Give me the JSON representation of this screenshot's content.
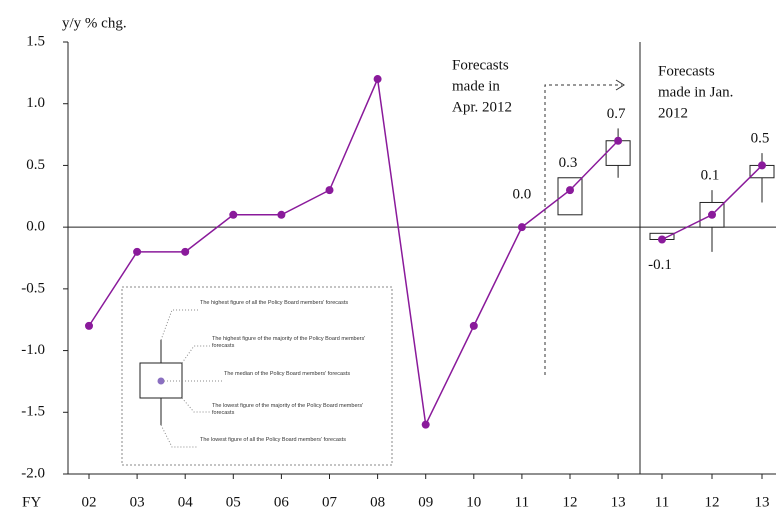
{
  "chart_data": {
    "type": "line",
    "y_label": "y/y % chg.",
    "x_label": "FY",
    "categories": [
      "02",
      "03",
      "04",
      "05",
      "06",
      "07",
      "08",
      "09",
      "10",
      "11",
      "12",
      "13",
      "11",
      "12",
      "13"
    ],
    "series": [
      {
        "color": "#8a1a9b",
        "values": [
          -0.8,
          -0.2,
          -0.2,
          0.1,
          0.1,
          0.3,
          1.2,
          -1.6,
          -0.8,
          0.0,
          0.3,
          0.7,
          null,
          null,
          null
        ],
        "value_labels": [
          null,
          null,
          null,
          null,
          null,
          null,
          null,
          null,
          null,
          "0.0",
          "0.3",
          "0.7",
          null,
          null,
          null
        ]
      },
      {
        "color": "#8a1a9b",
        "values": [
          null,
          null,
          null,
          null,
          null,
          null,
          null,
          null,
          null,
          null,
          null,
          null,
          -0.1,
          0.1,
          0.5
        ],
        "value_labels": [
          null,
          null,
          null,
          null,
          null,
          null,
          null,
          null,
          null,
          null,
          null,
          null,
          "-0.1",
          "0.1",
          "0.5"
        ]
      }
    ],
    "box_high": [
      null,
      null,
      null,
      null,
      null,
      null,
      null,
      null,
      null,
      null,
      0.4,
      0.8,
      -0.05,
      0.3,
      0.6
    ],
    "box_q3": [
      null,
      null,
      null,
      null,
      null,
      null,
      null,
      null,
      null,
      null,
      0.4,
      0.7,
      -0.05,
      0.2,
      0.5
    ],
    "box_q1": [
      null,
      null,
      null,
      null,
      null,
      null,
      null,
      null,
      null,
      null,
      0.1,
      0.5,
      -0.1,
      0.0,
      0.4
    ],
    "box_low": [
      null,
      null,
      null,
      null,
      null,
      null,
      null,
      null,
      null,
      null,
      0.1,
      0.4,
      -0.1,
      -0.2,
      0.2
    ],
    "ylim": [
      -2.0,
      1.5
    ],
    "yticks": [
      {
        "value": 1.5,
        "label": "1.5"
      },
      {
        "value": 1.0,
        "label": "1.0"
      },
      {
        "value": 0.5,
        "label": "0.5"
      },
      {
        "value": 0,
        "label": "0.0"
      },
      {
        "value": -0.5,
        "label": "-0.5"
      },
      {
        "value": -1.0,
        "label": "-1.0"
      },
      {
        "value": -1.5,
        "label": "-1.5"
      },
      {
        "value": -2.0,
        "label": "-2.0"
      }
    ],
    "forecast_labels": [
      [
        "Forecasts",
        "made in",
        "Apr. 2012"
      ],
      [
        "Forecasts",
        "made in Jan.",
        "2012"
      ]
    ],
    "legend_notes": [
      "The highest figure of all the Policy Board members' forecasts",
      "The highest figure of the majority of the Policy Board members' forecasts",
      "The median of the Policy Board members' forecasts",
      "The lowest figure of the majority of the Policy Board members' forecasts",
      "The lowest figure of all the Policy Board members' forecasts"
    ]
  }
}
